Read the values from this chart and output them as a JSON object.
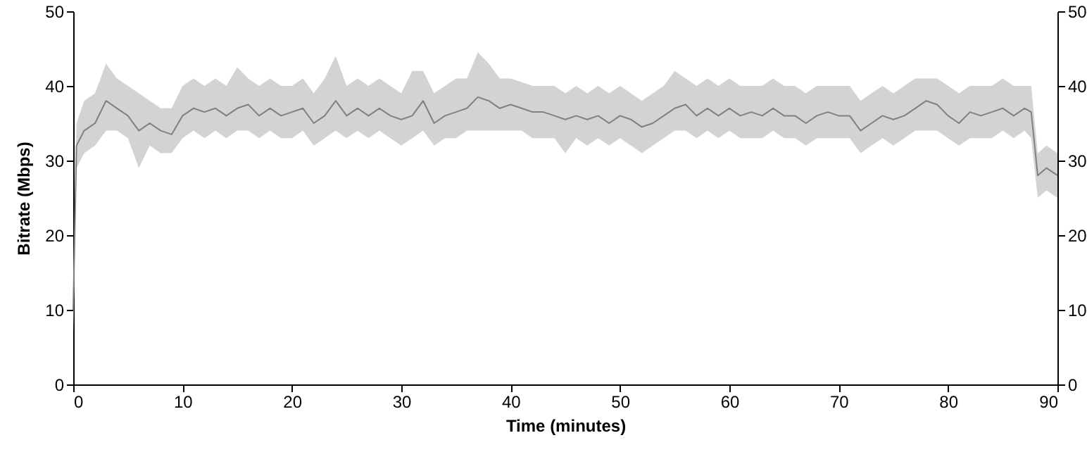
{
  "chart_data": {
    "type": "line",
    "xlabel": "Time (minutes)",
    "ylabel": "Bitrate (Mbps)",
    "xlim": [
      0,
      90
    ],
    "xticks": [
      0,
      10,
      20,
      30,
      40,
      50,
      60,
      70,
      80,
      90
    ],
    "ylim": [
      0,
      50
    ],
    "yticks": [
      0,
      10,
      20,
      30,
      40,
      50
    ],
    "y2lim": [
      0,
      50
    ],
    "y2ticks": [
      0,
      10,
      20,
      30,
      40,
      50
    ],
    "grid": false,
    "x": [
      0,
      0.3,
      1,
      2,
      3,
      4,
      5,
      6,
      7,
      8,
      9,
      10,
      11,
      12,
      13,
      14,
      15,
      16,
      17,
      18,
      19,
      20,
      21,
      22,
      23,
      24,
      25,
      26,
      27,
      28,
      29,
      30,
      31,
      32,
      33,
      34,
      35,
      36,
      37,
      38,
      39,
      40,
      41,
      42,
      43,
      44,
      45,
      46,
      47,
      48,
      49,
      50,
      51,
      52,
      53,
      54,
      55,
      56,
      57,
      58,
      59,
      60,
      61,
      62,
      63,
      64,
      65,
      66,
      67,
      68,
      69,
      70,
      71,
      72,
      73,
      74,
      75,
      76,
      77,
      78,
      79,
      80,
      81,
      82,
      83,
      84,
      85,
      86,
      87,
      87.6,
      88.2,
      89,
      90
    ],
    "series": [
      {
        "color": "#808080",
        "values": [
          10,
          32,
          34,
          35,
          38,
          37,
          36,
          34,
          35,
          34,
          33.5,
          36,
          37,
          36.5,
          37,
          36,
          37,
          37.5,
          36,
          37,
          36,
          36.5,
          37,
          35,
          36,
          38,
          36,
          37,
          36,
          37,
          36,
          35.5,
          36,
          38,
          35,
          36,
          36.5,
          37,
          38.5,
          38,
          37,
          37.5,
          37,
          36.5,
          36.5,
          36,
          35.5,
          36,
          35.5,
          36,
          35,
          36,
          35.5,
          34.5,
          35,
          36,
          37,
          37.5,
          36,
          37,
          36,
          37,
          36,
          36.5,
          36,
          37,
          36,
          36,
          35,
          36,
          36.5,
          36,
          36,
          34,
          35,
          36,
          35.5,
          36,
          37,
          38,
          37.5,
          36,
          35,
          36.5,
          36,
          36.5,
          37,
          36,
          37,
          36.5,
          28,
          29,
          28
        ],
        "lower": [
          7,
          29,
          31,
          32,
          34,
          34,
          33,
          29,
          32,
          31,
          31,
          33,
          34,
          33,
          34,
          33,
          34,
          34,
          33,
          34,
          33,
          33,
          34,
          32,
          33,
          34,
          33,
          34,
          33,
          34,
          33,
          32,
          33,
          34,
          32,
          33,
          33,
          34,
          34,
          34,
          34,
          34,
          34,
          33,
          33,
          33,
          31,
          33,
          32,
          33,
          32,
          33,
          32,
          31,
          32,
          33,
          34,
          34,
          33,
          34,
          33,
          34,
          33,
          33,
          33,
          34,
          33,
          33,
          32,
          33,
          33,
          33,
          33,
          31,
          32,
          33,
          32,
          33,
          34,
          34,
          34,
          33,
          32,
          33,
          33,
          33,
          34,
          33,
          34,
          33,
          25,
          26,
          25
        ],
        "upper": [
          12,
          35,
          38,
          39,
          43,
          41,
          40,
          39,
          38,
          37,
          37,
          40,
          41,
          40,
          41,
          40,
          42.5,
          41,
          40,
          41,
          40,
          40,
          41,
          39,
          41,
          44,
          40,
          41,
          40,
          41,
          40,
          39,
          42,
          42,
          39,
          40,
          41,
          41,
          44.5,
          43,
          41,
          41,
          40.5,
          40,
          40,
          40,
          39,
          40,
          39,
          40,
          39,
          40,
          39,
          38,
          39,
          40,
          42,
          41,
          40,
          41,
          40,
          41,
          40,
          40,
          40,
          41,
          40,
          40,
          39,
          40,
          40,
          40,
          40,
          38,
          39,
          40,
          39,
          40,
          41,
          41,
          41,
          40,
          39,
          40,
          40,
          40,
          41,
          40,
          40,
          40,
          31,
          32,
          31
        ]
      }
    ]
  }
}
